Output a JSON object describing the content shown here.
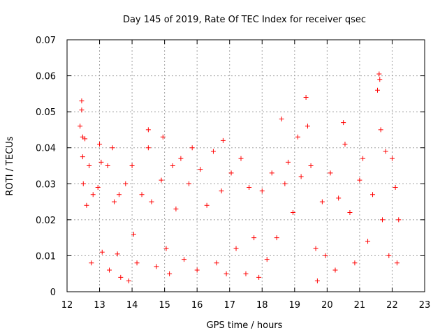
{
  "chart_data": {
    "type": "scatter",
    "title": "Day 145 of 2019, Rate Of TEC Index for receiver qsec",
    "xlabel": "GPS time / hours",
    "ylabel": "ROTI / TECUs",
    "xlim": [
      12,
      23
    ],
    "ylim": [
      0,
      0.07
    ],
    "xticks": [
      "12",
      "13",
      "14",
      "15",
      "16",
      "17",
      "18",
      "19",
      "20",
      "21",
      "22",
      "23"
    ],
    "yticks": [
      "0",
      "0.01",
      "0.02",
      "0.03",
      "0.04",
      "0.05",
      "0.06",
      "0.07"
    ],
    "grid": true,
    "marker": "+",
    "colors": {
      "series": "#ff0000",
      "grid": "#a0a0a0",
      "frame": "#000000"
    },
    "series": [
      {
        "name": "ROTI",
        "x": [
          12.4,
          12.45,
          12.45,
          12.48,
          12.48,
          12.5,
          12.55,
          12.6,
          12.68,
          12.75,
          12.8,
          12.95,
          13.0,
          13.05,
          13.08,
          13.25,
          13.3,
          13.4,
          13.45,
          13.55,
          13.6,
          13.65,
          13.8,
          13.9,
          14.0,
          14.05,
          14.15,
          14.3,
          14.5,
          14.5,
          14.6,
          14.75,
          14.9,
          14.95,
          15.05,
          15.15,
          15.25,
          15.35,
          15.5,
          15.6,
          15.75,
          15.85,
          16.0,
          16.1,
          16.3,
          16.5,
          16.6,
          16.75,
          16.8,
          16.9,
          17.05,
          17.2,
          17.35,
          17.5,
          17.6,
          17.75,
          17.9,
          18.0,
          18.15,
          18.3,
          18.45,
          18.6,
          18.7,
          18.8,
          18.95,
          19.1,
          19.2,
          19.35,
          19.4,
          19.5,
          19.65,
          19.7,
          19.85,
          19.95,
          20.1,
          20.25,
          20.35,
          20.5,
          20.55,
          20.7,
          20.85,
          21.0,
          21.1,
          21.25,
          21.4,
          21.55,
          21.6,
          21.62,
          21.65,
          21.7,
          21.8,
          21.9,
          22.0,
          22.1,
          22.15,
          22.2
        ],
        "y": [
          0.046,
          0.053,
          0.0505,
          0.043,
          0.0375,
          0.03,
          0.0425,
          0.024,
          0.035,
          0.008,
          0.027,
          0.029,
          0.041,
          0.036,
          0.011,
          0.035,
          0.006,
          0.04,
          0.025,
          0.0105,
          0.027,
          0.004,
          0.03,
          0.003,
          0.035,
          0.016,
          0.008,
          0.027,
          0.045,
          0.04,
          0.025,
          0.007,
          0.031,
          0.043,
          0.012,
          0.005,
          0.035,
          0.023,
          0.037,
          0.009,
          0.03,
          0.04,
          0.006,
          0.034,
          0.024,
          0.039,
          0.008,
          0.028,
          0.042,
          0.005,
          0.033,
          0.012,
          0.037,
          0.005,
          0.029,
          0.015,
          0.004,
          0.028,
          0.009,
          0.033,
          0.015,
          0.048,
          0.03,
          0.036,
          0.022,
          0.043,
          0.032,
          0.054,
          0.046,
          0.035,
          0.012,
          0.003,
          0.025,
          0.01,
          0.033,
          0.006,
          0.026,
          0.047,
          0.041,
          0.022,
          0.008,
          0.031,
          0.037,
          0.014,
          0.027,
          0.056,
          0.0605,
          0.059,
          0.045,
          0.02,
          0.039,
          0.01,
          0.037,
          0.029,
          0.008,
          0.02
        ]
      }
    ]
  }
}
